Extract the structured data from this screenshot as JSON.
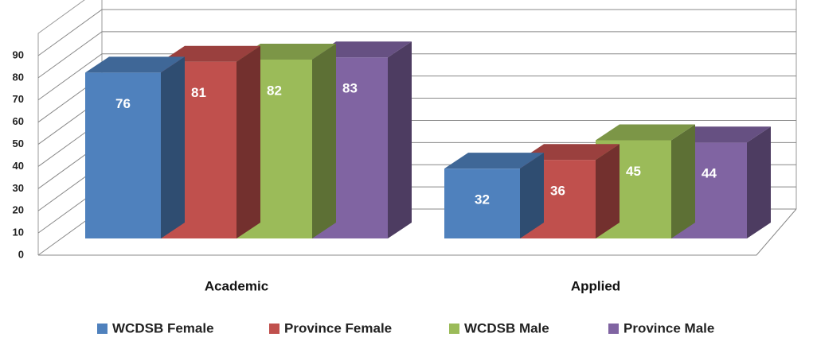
{
  "chart_data": {
    "type": "bar3d",
    "categories": [
      "Academic",
      "Applied"
    ],
    "series": [
      {
        "name": "WCDSB Female",
        "color": "#4f81bd",
        "values": [
          76,
          32
        ]
      },
      {
        "name": "Province Female",
        "color": "#c0504d",
        "values": [
          81,
          36
        ]
      },
      {
        "name": "WCDSB Male",
        "color": "#9bbb59",
        "values": [
          82,
          45
        ]
      },
      {
        "name": "Province Male",
        "color": "#8064a2",
        "values": [
          83,
          44
        ]
      }
    ],
    "ylim": [
      0,
      90
    ],
    "yticks": [
      0,
      10,
      20,
      30,
      40,
      50,
      60,
      70,
      80,
      90
    ],
    "grid": true,
    "legend": "bottom"
  }
}
